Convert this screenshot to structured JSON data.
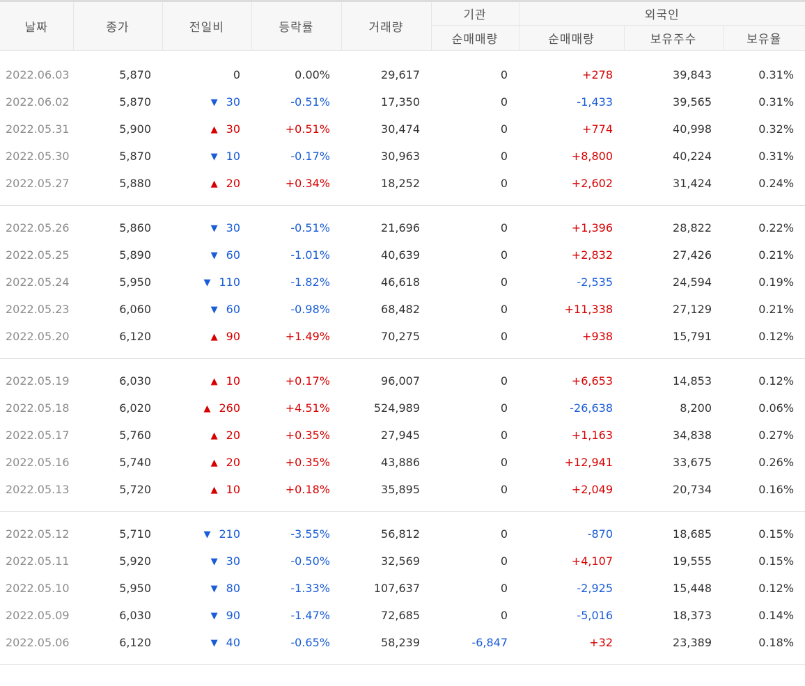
{
  "headers": {
    "date": "날짜",
    "close": "종가",
    "change": "전일비",
    "rate": "등락률",
    "volume": "거래량",
    "inst_group": "기관",
    "inst_net": "순매매량",
    "foreign_group": "외국인",
    "foreign_net": "순매매량",
    "foreign_holdings": "보유주수",
    "foreign_ratio": "보유율"
  },
  "colors": {
    "up": "#d60000",
    "down": "#1a5dd6",
    "neutral": "#333333"
  },
  "icons": {
    "up": "triangle-up-icon ▲",
    "down": "triangle-down-icon ▼"
  },
  "groups": [
    [
      {
        "date": "2022.06.03",
        "close": "5,870",
        "dir": "none",
        "change": "0",
        "rate": "0.00%",
        "volume": "29,617",
        "inst": "0",
        "inst_dir": "none",
        "foreign": "+278",
        "foreign_dir": "up",
        "holdings": "39,843",
        "ratio": "0.31%"
      },
      {
        "date": "2022.06.02",
        "close": "5,870",
        "dir": "down",
        "change": "30",
        "rate": "-0.51%",
        "volume": "17,350",
        "inst": "0",
        "inst_dir": "none",
        "foreign": "-1,433",
        "foreign_dir": "down",
        "holdings": "39,565",
        "ratio": "0.31%"
      },
      {
        "date": "2022.05.31",
        "close": "5,900",
        "dir": "up",
        "change": "30",
        "rate": "+0.51%",
        "volume": "30,474",
        "inst": "0",
        "inst_dir": "none",
        "foreign": "+774",
        "foreign_dir": "up",
        "holdings": "40,998",
        "ratio": "0.32%"
      },
      {
        "date": "2022.05.30",
        "close": "5,870",
        "dir": "down",
        "change": "10",
        "rate": "-0.17%",
        "volume": "30,963",
        "inst": "0",
        "inst_dir": "none",
        "foreign": "+8,800",
        "foreign_dir": "up",
        "holdings": "40,224",
        "ratio": "0.31%"
      },
      {
        "date": "2022.05.27",
        "close": "5,880",
        "dir": "up",
        "change": "20",
        "rate": "+0.34%",
        "volume": "18,252",
        "inst": "0",
        "inst_dir": "none",
        "foreign": "+2,602",
        "foreign_dir": "up",
        "holdings": "31,424",
        "ratio": "0.24%"
      }
    ],
    [
      {
        "date": "2022.05.26",
        "close": "5,860",
        "dir": "down",
        "change": "30",
        "rate": "-0.51%",
        "volume": "21,696",
        "inst": "0",
        "inst_dir": "none",
        "foreign": "+1,396",
        "foreign_dir": "up",
        "holdings": "28,822",
        "ratio": "0.22%"
      },
      {
        "date": "2022.05.25",
        "close": "5,890",
        "dir": "down",
        "change": "60",
        "rate": "-1.01%",
        "volume": "40,639",
        "inst": "0",
        "inst_dir": "none",
        "foreign": "+2,832",
        "foreign_dir": "up",
        "holdings": "27,426",
        "ratio": "0.21%"
      },
      {
        "date": "2022.05.24",
        "close": "5,950",
        "dir": "down",
        "change": "110",
        "rate": "-1.82%",
        "volume": "46,618",
        "inst": "0",
        "inst_dir": "none",
        "foreign": "-2,535",
        "foreign_dir": "down",
        "holdings": "24,594",
        "ratio": "0.19%"
      },
      {
        "date": "2022.05.23",
        "close": "6,060",
        "dir": "down",
        "change": "60",
        "rate": "-0.98%",
        "volume": "68,482",
        "inst": "0",
        "inst_dir": "none",
        "foreign": "+11,338",
        "foreign_dir": "up",
        "holdings": "27,129",
        "ratio": "0.21%"
      },
      {
        "date": "2022.05.20",
        "close": "6,120",
        "dir": "up",
        "change": "90",
        "rate": "+1.49%",
        "volume": "70,275",
        "inst": "0",
        "inst_dir": "none",
        "foreign": "+938",
        "foreign_dir": "up",
        "holdings": "15,791",
        "ratio": "0.12%"
      }
    ],
    [
      {
        "date": "2022.05.19",
        "close": "6,030",
        "dir": "up",
        "change": "10",
        "rate": "+0.17%",
        "volume": "96,007",
        "inst": "0",
        "inst_dir": "none",
        "foreign": "+6,653",
        "foreign_dir": "up",
        "holdings": "14,853",
        "ratio": "0.12%"
      },
      {
        "date": "2022.05.18",
        "close": "6,020",
        "dir": "up",
        "change": "260",
        "rate": "+4.51%",
        "volume": "524,989",
        "inst": "0",
        "inst_dir": "none",
        "foreign": "-26,638",
        "foreign_dir": "down",
        "holdings": "8,200",
        "ratio": "0.06%"
      },
      {
        "date": "2022.05.17",
        "close": "5,760",
        "dir": "up",
        "change": "20",
        "rate": "+0.35%",
        "volume": "27,945",
        "inst": "0",
        "inst_dir": "none",
        "foreign": "+1,163",
        "foreign_dir": "up",
        "holdings": "34,838",
        "ratio": "0.27%"
      },
      {
        "date": "2022.05.16",
        "close": "5,740",
        "dir": "up",
        "change": "20",
        "rate": "+0.35%",
        "volume": "43,886",
        "inst": "0",
        "inst_dir": "none",
        "foreign": "+12,941",
        "foreign_dir": "up",
        "holdings": "33,675",
        "ratio": "0.26%"
      },
      {
        "date": "2022.05.13",
        "close": "5,720",
        "dir": "up",
        "change": "10",
        "rate": "+0.18%",
        "volume": "35,895",
        "inst": "0",
        "inst_dir": "none",
        "foreign": "+2,049",
        "foreign_dir": "up",
        "holdings": "20,734",
        "ratio": "0.16%"
      }
    ],
    [
      {
        "date": "2022.05.12",
        "close": "5,710",
        "dir": "down",
        "change": "210",
        "rate": "-3.55%",
        "volume": "56,812",
        "inst": "0",
        "inst_dir": "none",
        "foreign": "-870",
        "foreign_dir": "down",
        "holdings": "18,685",
        "ratio": "0.15%"
      },
      {
        "date": "2022.05.11",
        "close": "5,920",
        "dir": "down",
        "change": "30",
        "rate": "-0.50%",
        "volume": "32,569",
        "inst": "0",
        "inst_dir": "none",
        "foreign": "+4,107",
        "foreign_dir": "up",
        "holdings": "19,555",
        "ratio": "0.15%"
      },
      {
        "date": "2022.05.10",
        "close": "5,950",
        "dir": "down",
        "change": "80",
        "rate": "-1.33%",
        "volume": "107,637",
        "inst": "0",
        "inst_dir": "none",
        "foreign": "-2,925",
        "foreign_dir": "down",
        "holdings": "15,448",
        "ratio": "0.12%"
      },
      {
        "date": "2022.05.09",
        "close": "6,030",
        "dir": "down",
        "change": "90",
        "rate": "-1.47%",
        "volume": "72,685",
        "inst": "0",
        "inst_dir": "none",
        "foreign": "-5,016",
        "foreign_dir": "down",
        "holdings": "18,373",
        "ratio": "0.14%"
      },
      {
        "date": "2022.05.06",
        "close": "6,120",
        "dir": "down",
        "change": "40",
        "rate": "-0.65%",
        "volume": "58,239",
        "inst": "-6,847",
        "inst_dir": "down",
        "foreign": "+32",
        "foreign_dir": "up",
        "holdings": "23,389",
        "ratio": "0.18%"
      }
    ]
  ]
}
